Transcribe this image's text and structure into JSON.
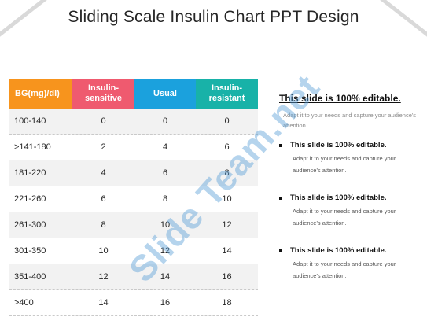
{
  "title": "Sliding Scale Insulin Chart PPT Design",
  "table": {
    "headers": [
      "BG(mg)/dl)",
      "Insulin-sensitive",
      "Usual",
      "Insulin-resistant"
    ],
    "header_colors": [
      "#f7941d",
      "#ef5a6f",
      "#1ba1dd",
      "#18b2a8"
    ],
    "rows": [
      [
        "100-140",
        "0",
        "0",
        "0"
      ],
      [
        ">141-180",
        "2",
        "4",
        "6"
      ],
      [
        "181-220",
        "4",
        "6",
        "8"
      ],
      [
        "221-260",
        "6",
        "8",
        "10"
      ],
      [
        "261-300",
        "8",
        "10",
        "12"
      ],
      [
        "301-350",
        "10",
        "12",
        "14"
      ],
      [
        "351-400",
        "12",
        "14",
        "16"
      ],
      [
        ">400",
        "14",
        "16",
        "18"
      ]
    ]
  },
  "panel": {
    "lead_title": "This slide is 100% editable.",
    "lead_text": "Adapt it to your needs and capture your audience's attention.",
    "bullets": [
      {
        "title": "This slide is 100% editable.",
        "text": "Adapt it to your needs and capture your audience's attention."
      },
      {
        "title": "This slide is 100% editable.",
        "text": "Adapt it to your needs and capture your audience's attention."
      },
      {
        "title": "This slide is 100% editable.",
        "text": "Adapt it to your needs and capture your audience's attention."
      }
    ]
  },
  "watermark": "Slide Team.net"
}
